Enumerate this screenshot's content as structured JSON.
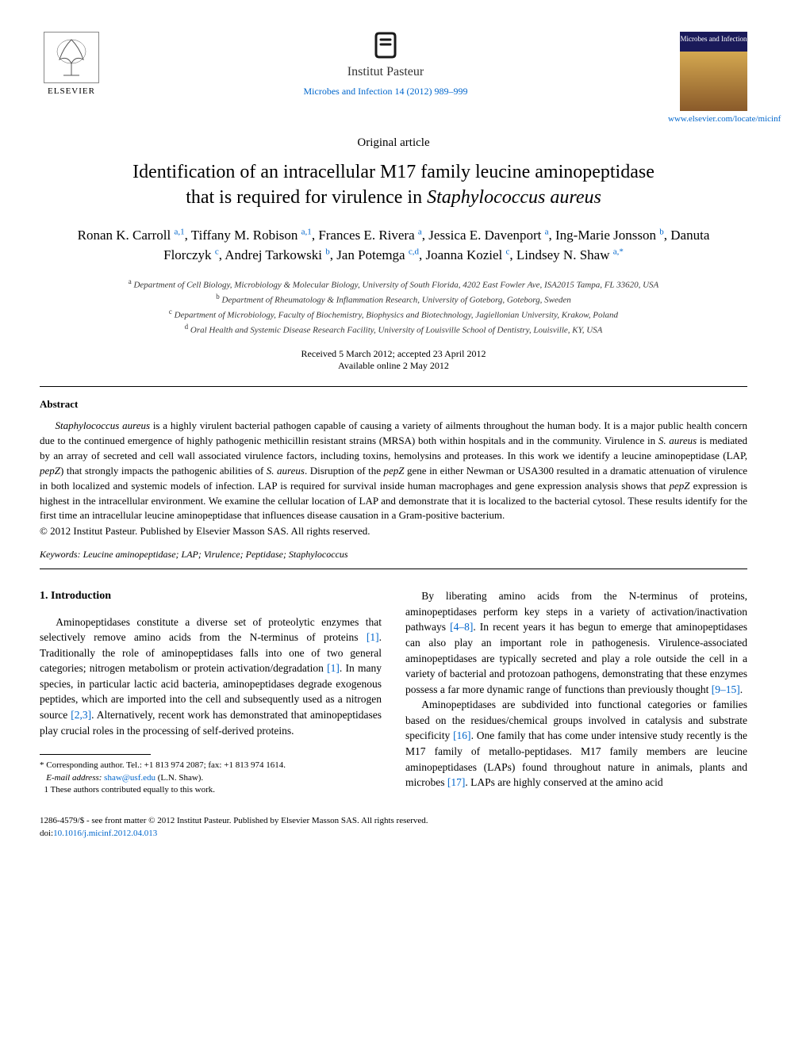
{
  "header": {
    "elsevier_label": "ELSEVIER",
    "pasteur_name": "Institut Pasteur",
    "journal_ref": "Microbes and Infection 14 (2012) 989–999",
    "cover_label": "Microbes and Infection",
    "locate_url": "www.elsevier.com/locate/micinf"
  },
  "article_type": "Original article",
  "title_line1": "Identification of an intracellular M17 family leucine aminopeptidase",
  "title_line2_pre": "that is required for virulence in ",
  "title_line2_italic": "Staphylococcus aureus",
  "authors": [
    {
      "name": "Ronan K. Carroll",
      "sup": "a,1"
    },
    {
      "name": "Tiffany M. Robison",
      "sup": "a,1"
    },
    {
      "name": "Frances E. Rivera",
      "sup": "a"
    },
    {
      "name": "Jessica E. Davenport",
      "sup": "a"
    },
    {
      "name": "Ing-Marie Jonsson",
      "sup": "b"
    },
    {
      "name": "Danuta Florczyk",
      "sup": "c"
    },
    {
      "name": "Andrej Tarkowski",
      "sup": "b"
    },
    {
      "name": "Jan Potemga",
      "sup": "c,d"
    },
    {
      "name": "Joanna Koziel",
      "sup": "c"
    },
    {
      "name": "Lindsey N. Shaw",
      "sup": "a,*"
    }
  ],
  "affiliations": {
    "a": "Department of Cell Biology, Microbiology & Molecular Biology, University of South Florida, 4202 East Fowler Ave, ISA2015 Tampa, FL 33620, USA",
    "b": "Department of Rheumatology & Inflammation Research, University of Goteborg, Goteborg, Sweden",
    "c": "Department of Microbiology, Faculty of Biochemistry, Biophysics and Biotechnology, Jagiellonian University, Krakow, Poland",
    "d": "Oral Health and Systemic Disease Research Facility, University of Louisville School of Dentistry, Louisville, KY, USA"
  },
  "dates": {
    "received_accepted": "Received 5 March 2012; accepted 23 April 2012",
    "online": "Available online 2 May 2012"
  },
  "abstract": {
    "label": "Abstract",
    "text_parts": [
      {
        "italic": true,
        "t": "Staphylococcus aureus"
      },
      {
        "italic": false,
        "t": " is a highly virulent bacterial pathogen capable of causing a variety of ailments throughout the human body. It is a major public health concern due to the continued emergence of highly pathogenic methicillin resistant strains (MRSA) both within hospitals and in the community. Virulence in "
      },
      {
        "italic": true,
        "t": "S. aureus"
      },
      {
        "italic": false,
        "t": " is mediated by an array of secreted and cell wall associated virulence factors, including toxins, hemolysins and proteases. In this work we identify a leucine aminopeptidase (LAP, "
      },
      {
        "italic": true,
        "t": "pepZ"
      },
      {
        "italic": false,
        "t": ") that strongly impacts the pathogenic abilities of "
      },
      {
        "italic": true,
        "t": "S. aureus"
      },
      {
        "italic": false,
        "t": ". Disruption of the "
      },
      {
        "italic": true,
        "t": "pepZ"
      },
      {
        "italic": false,
        "t": " gene in either Newman or USA300 resulted in a dramatic attenuation of virulence in both localized and systemic models of infection. LAP is required for survival inside human macrophages and gene expression analysis shows that "
      },
      {
        "italic": true,
        "t": "pepZ"
      },
      {
        "italic": false,
        "t": " expression is highest in the intracellular environment. We examine the cellular location of LAP and demonstrate that it is localized to the bacterial cytosol. These results identify for the first time an intracellular leucine aminopeptidase that influences disease causation in a Gram-positive bacterium."
      }
    ],
    "copyright": "© 2012 Institut Pasteur. Published by Elsevier Masson SAS. All rights reserved."
  },
  "keywords": {
    "label": "Keywords:",
    "value": "Leucine aminopeptidase; LAP; Virulence; Peptidase; Staphylococcus"
  },
  "body": {
    "section_heading": "1. Introduction",
    "col1_p1": "Aminopeptidases constitute a diverse set of proteolytic enzymes that selectively remove amino acids from the N-terminus of proteins [1]. Traditionally the role of aminopeptidases falls into one of two general categories; nitrogen metabolism or protein activation/degradation [1]. In many species, in particular lactic acid bacteria, aminopeptidases degrade exogenous peptides, which are imported into the cell and subsequently used as a nitrogen source [2,3]. Alternatively, recent work has demonstrated that aminopeptidases play crucial roles in the processing of self-derived proteins.",
    "col2_p1": "By liberating amino acids from the N-terminus of proteins, aminopeptidases perform key steps in a variety of activation/inactivation pathways [4–8]. In recent years it has begun to emerge that aminopeptidases can also play an important role in pathogenesis. Virulence-associated aminopeptidases are typically secreted and play a role outside the cell in a variety of bacterial and protozoan pathogens, demonstrating that these enzymes possess a far more dynamic range of functions than previously thought [9–15].",
    "col2_p2": "Aminopeptidases are subdivided into functional categories or families based on the residues/chemical groups involved in catalysis and substrate specificity [16]. One family that has come under intensive study recently is the M17 family of metallo-peptidases. M17 family members are leucine aminopeptidases (LAPs) found throughout nature in animals, plants and microbes [17]. LAPs are highly conserved at the amino acid",
    "citations": {
      "c1": "[1]",
      "c2": "[1]",
      "c3": "[2,3]",
      "c4": "[4–8]",
      "c5": "[9–15]",
      "c6": "[16]",
      "c7": "[17]"
    }
  },
  "footnotes": {
    "corr": "* Corresponding author. Tel.: +1 813 974 2087; fax: +1 813 974 1614.",
    "email_label": "E-mail address:",
    "email": "shaw@usf.edu",
    "email_name": "(L.N. Shaw).",
    "equal": "1 These authors contributed equally to this work."
  },
  "bottom": {
    "issn": "1286-4579/$ - see front matter © 2012 Institut Pasteur. Published by Elsevier Masson SAS. All rights reserved.",
    "doi_label": "doi:",
    "doi": "10.1016/j.micinf.2012.04.013"
  },
  "style": {
    "link_color": "#0066cc",
    "text_color": "#000000",
    "background": "#ffffff",
    "title_fontsize": 24,
    "author_fontsize": 17,
    "body_fontsize": 13.5,
    "abstract_fontsize": 13,
    "affil_fontsize": 11,
    "footnote_fontsize": 11
  }
}
